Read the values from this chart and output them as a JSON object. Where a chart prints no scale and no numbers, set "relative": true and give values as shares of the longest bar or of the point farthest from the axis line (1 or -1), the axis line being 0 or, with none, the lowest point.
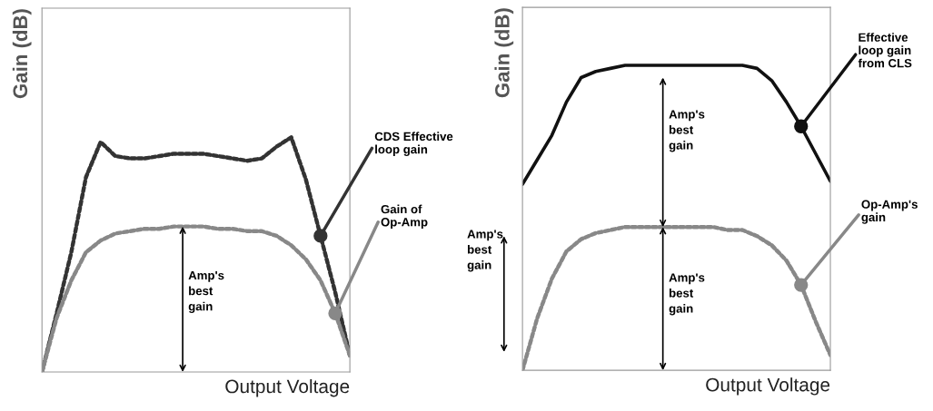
{
  "chart_data": [
    {
      "type": "line",
      "relative": true,
      "ylabel": "Gain (dB)",
      "xlabel": "Output Voltage",
      "categories": [
        null,
        null,
        null,
        null,
        null,
        null,
        null,
        null,
        null,
        null,
        null,
        null,
        null,
        null,
        null,
        null,
        null,
        null,
        null,
        null,
        null,
        null
      ],
      "series": [
        {
          "name": "CDS Effective\nloop gain",
          "color": "#333333",
          "line_style": "dotted",
          "values": [
            0,
            0.25,
            0.51,
            0.83,
            0.98,
            0.92,
            0.91,
            0.91,
            0.92,
            0.93,
            0.93,
            0.93,
            0.92,
            0.91,
            0.9,
            0.91,
            0.96,
            1.0,
            0.82,
            0.58,
            0.34,
            0.07
          ]
        },
        {
          "name": "Gain of\nOp-Amp",
          "color": "#888888",
          "line_style": "dotted",
          "values": [
            0,
            0.23,
            0.39,
            0.51,
            0.56,
            0.59,
            0.6,
            0.61,
            0.61,
            0.62,
            0.62,
            0.62,
            0.61,
            0.61,
            0.6,
            0.6,
            0.58,
            0.54,
            0.48,
            0.39,
            0.25,
            0.07
          ]
        }
      ],
      "annotations": [
        "Amp's\nbest\ngain"
      ]
    },
    {
      "type": "line",
      "relative": true,
      "ylabel": "Gain (dB)",
      "xlabel": "Output Voltage",
      "categories": [
        null,
        null,
        null,
        null,
        null,
        null,
        null,
        null,
        null,
        null,
        null,
        null,
        null,
        null,
        null,
        null,
        null,
        null,
        null,
        null,
        null,
        null
      ],
      "series": [
        {
          "name": "Effective\nloop gain\nfrom CLS",
          "color": "#111111",
          "line_style": "solid",
          "values": [
            0.61,
            0.69,
            0.77,
            0.88,
            0.96,
            0.98,
            0.99,
            1.0,
            1.0,
            1.0,
            1.0,
            1.0,
            1.0,
            1.0,
            1.0,
            1.0,
            0.99,
            0.95,
            0.88,
            0.8,
            0.71,
            0.62
          ]
        },
        {
          "name": "Op-Amp's\ngain",
          "color": "#888888",
          "line_style": "dotted",
          "values": [
            0,
            0.17,
            0.3,
            0.39,
            0.43,
            0.45,
            0.46,
            0.47,
            0.47,
            0.47,
            0.47,
            0.47,
            0.47,
            0.47,
            0.46,
            0.46,
            0.44,
            0.41,
            0.36,
            0.28,
            0.16,
            0.05
          ]
        }
      ],
      "annotations": [
        "Amp's\nbest\ngain",
        "Amp's\nbest\ngain",
        "Amp's\nbest\ngain"
      ]
    }
  ]
}
